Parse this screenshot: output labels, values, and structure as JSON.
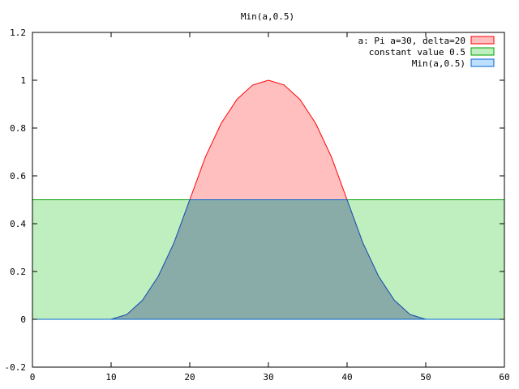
{
  "chart_data": {
    "type": "area",
    "title": "Min(a,0.5)",
    "xlabel": "",
    "ylabel": "",
    "xlim": [
      0,
      60
    ],
    "ylim": [
      -0.2,
      1.2
    ],
    "xticks": [
      0,
      10,
      20,
      30,
      40,
      50,
      60
    ],
    "xtick_labels": [
      "0",
      "10",
      "20",
      "30",
      "40",
      "50",
      "60"
    ],
    "yticks": [
      -0.2,
      0,
      0.2,
      0.4,
      0.6,
      0.8,
      1,
      1.2
    ],
    "ytick_labels": [
      "-0.2",
      "0",
      "0.2",
      "0.4",
      "0.6",
      "0.8",
      "1",
      "1.2"
    ],
    "grid": false,
    "legend_position": "top-right",
    "series": [
      {
        "name": "a: Pi a=30, delta=20",
        "fill": "#ffbfbf",
        "stroke": "#ff0000",
        "x": [
          0,
          10,
          12,
          14,
          16,
          18,
          20,
          22,
          24,
          26,
          28,
          30,
          32,
          34,
          36,
          38,
          40,
          42,
          44,
          46,
          48,
          50,
          60
        ],
        "y": [
          0,
          0,
          0.02,
          0.08,
          0.18,
          0.32,
          0.5,
          0.68,
          0.82,
          0.92,
          0.98,
          1.0,
          0.98,
          0.92,
          0.82,
          0.68,
          0.5,
          0.32,
          0.18,
          0.08,
          0.02,
          0,
          0
        ]
      },
      {
        "name": "constant value 0.5",
        "fill": "#bfefbf",
        "stroke": "#00a000",
        "x": [
          0,
          60
        ],
        "y": [
          0.5,
          0.5
        ]
      },
      {
        "name": "Min(a,0.5)",
        "fill": "#bfdfff",
        "stroke": "#0066cc",
        "x": [
          0,
          10,
          12,
          14,
          16,
          18,
          20,
          22,
          24,
          26,
          28,
          30,
          32,
          34,
          36,
          38,
          40,
          42,
          44,
          46,
          48,
          50,
          60
        ],
        "y": [
          0,
          0,
          0.02,
          0.08,
          0.18,
          0.32,
          0.5,
          0.5,
          0.5,
          0.5,
          0.5,
          0.5,
          0.5,
          0.5,
          0.5,
          0.5,
          0.5,
          0.32,
          0.18,
          0.08,
          0.02,
          0,
          0
        ]
      }
    ],
    "overlap_fill": "#8aaca8"
  }
}
